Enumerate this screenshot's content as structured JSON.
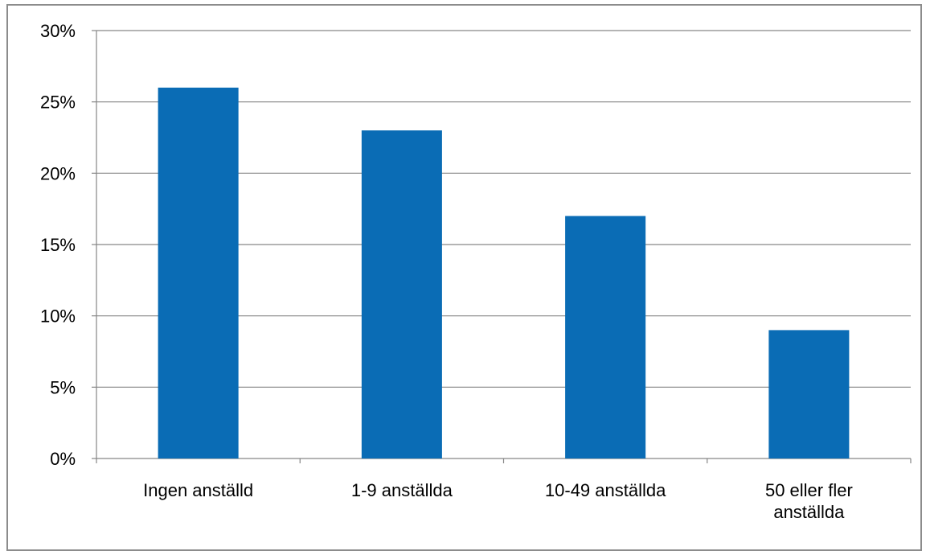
{
  "chart_data": {
    "type": "bar",
    "title": "",
    "xlabel": "",
    "ylabel": "",
    "categories": [
      [
        "Ingen anställd"
      ],
      [
        "1-9 anställda"
      ],
      [
        "10-49 anställda"
      ],
      [
        "50 eller fler",
        "anställda"
      ]
    ],
    "values": [
      0.26,
      0.23,
      0.17,
      0.09
    ],
    "ylim": [
      0,
      0.3
    ],
    "yticks": [
      0,
      0.05,
      0.1,
      0.15,
      0.2,
      0.25,
      0.3
    ],
    "ytick_labels": [
      "0%",
      "5%",
      "10%",
      "15%",
      "20%",
      "25%",
      "30%"
    ],
    "bar_color": "#0a6cb5",
    "grid": true,
    "legend": "none"
  }
}
